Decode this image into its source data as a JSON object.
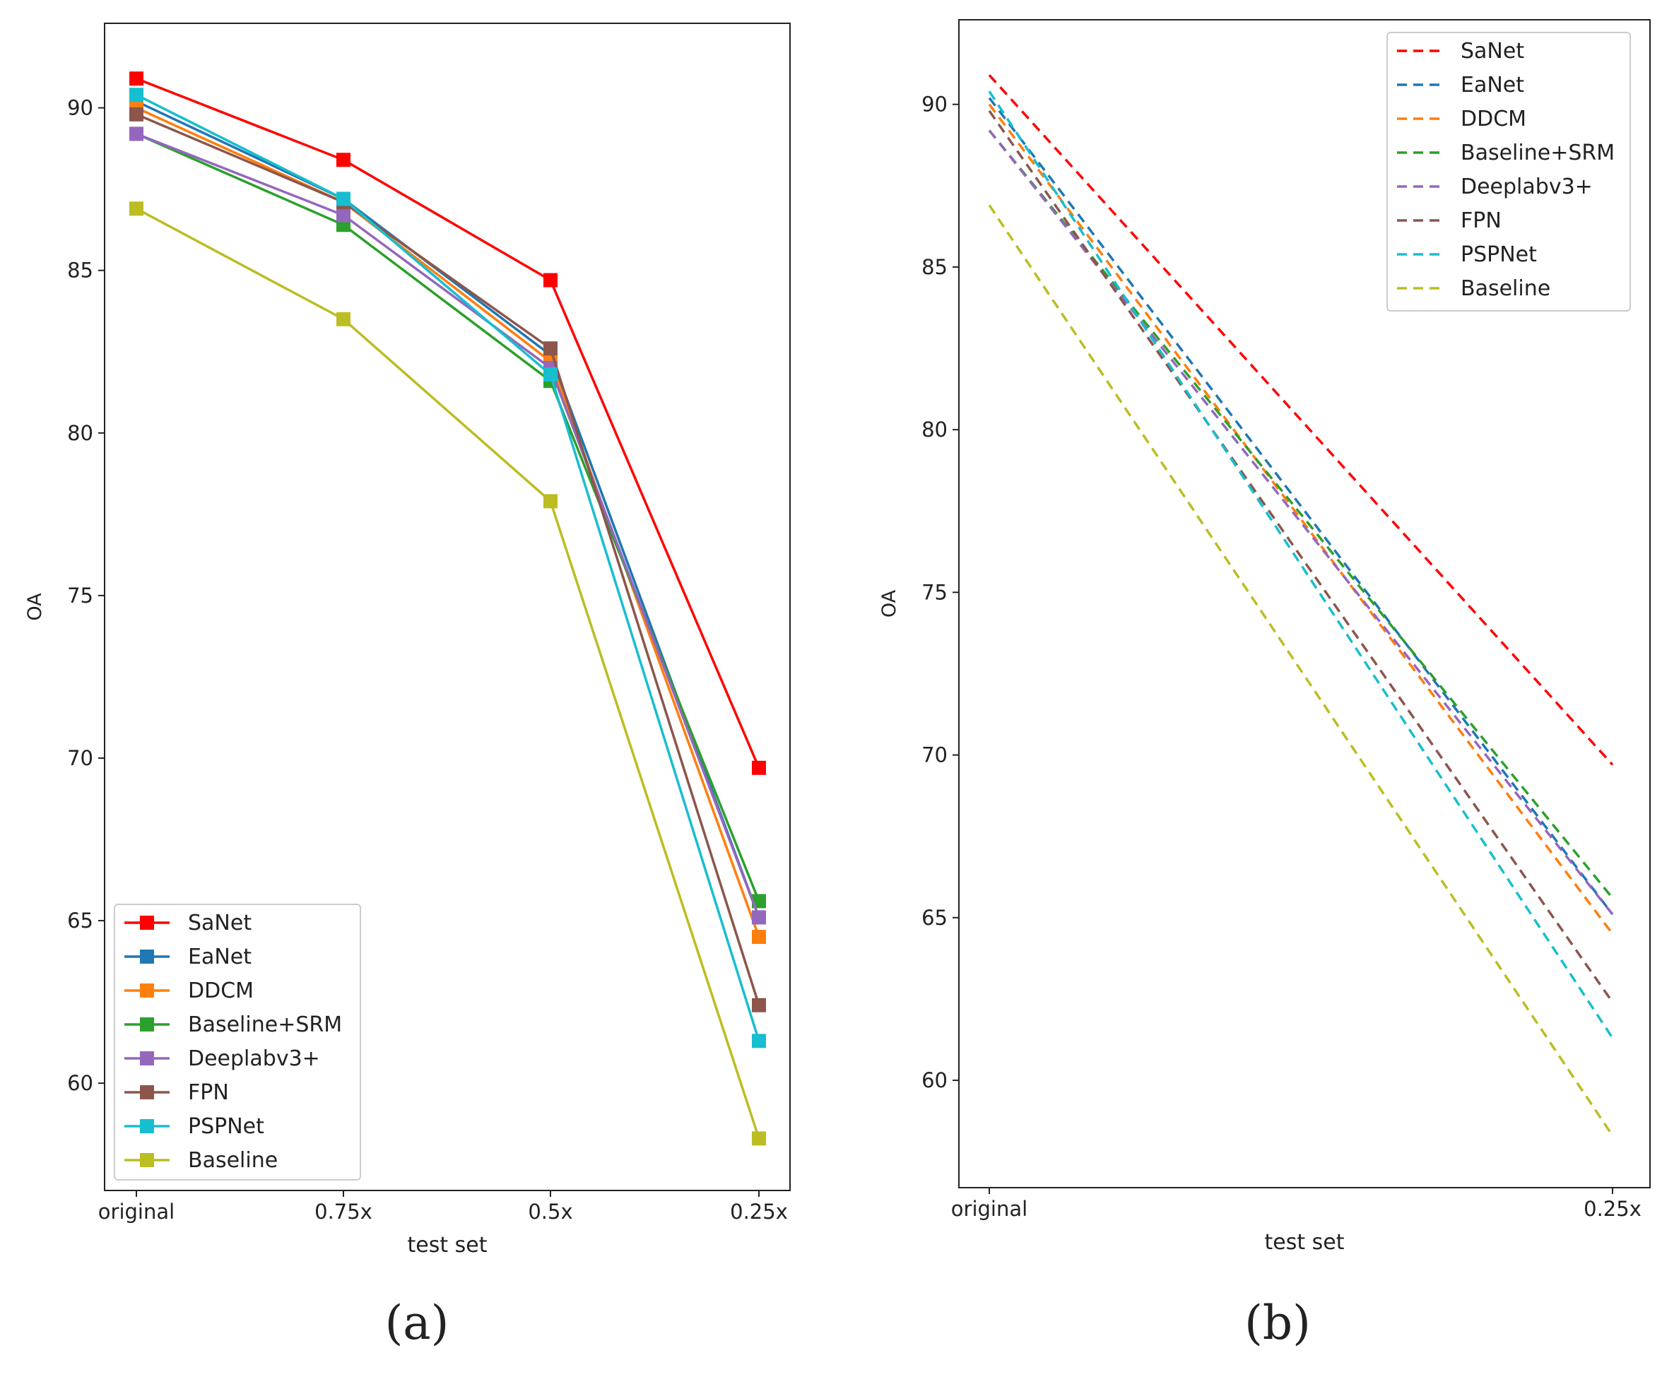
{
  "colors": {
    "SaNet": "#ff0000",
    "EaNet": "#1f77b4",
    "DDCM": "#ff7f0e",
    "Baseline+SRM": "#2ca02c",
    "Deeplabv3+": "#9467bd",
    "FPN": "#8c564b",
    "PSPNet": "#17becf",
    "Baseline": "#bcbd22"
  },
  "panel_labels": [
    "(a)",
    "(b)"
  ],
  "chart_data": [
    {
      "type": "line",
      "panel": "(a)",
      "title": "",
      "xlabel": "test set",
      "ylabel": "OA",
      "categories": [
        "original",
        "0.75x",
        "0.5x",
        "0.25x"
      ],
      "ylim": [
        56.7,
        92.6
      ],
      "yticks": [
        60,
        65,
        70,
        75,
        80,
        85,
        90
      ],
      "marker": "square",
      "line_style": "solid",
      "grid": false,
      "legend_position": "lower-left",
      "series": [
        {
          "name": "SaNet",
          "values": [
            90.9,
            88.4,
            84.7,
            69.7
          ]
        },
        {
          "name": "EaNet",
          "values": [
            90.2,
            87.2,
            82.4,
            65.1
          ]
        },
        {
          "name": "DDCM",
          "values": [
            90.0,
            87.1,
            82.2,
            64.5
          ]
        },
        {
          "name": "Baseline+SRM",
          "values": [
            89.2,
            86.4,
            81.6,
            65.6
          ]
        },
        {
          "name": "Deeplabv3+",
          "values": [
            89.2,
            86.7,
            82.0,
            65.1
          ]
        },
        {
          "name": "FPN",
          "values": [
            89.8,
            87.1,
            82.6,
            62.4
          ]
        },
        {
          "name": "PSPNet",
          "values": [
            90.4,
            87.2,
            81.8,
            61.3
          ]
        },
        {
          "name": "Baseline",
          "values": [
            86.9,
            83.5,
            77.9,
            58.3
          ]
        }
      ]
    },
    {
      "type": "line",
      "panel": "(b)",
      "title": "",
      "xlabel": "test set",
      "ylabel": "OA",
      "categories": [
        "original",
        "0.25x"
      ],
      "ylim": [
        56.7,
        92.6
      ],
      "yticks": [
        60,
        65,
        70,
        75,
        80,
        85,
        90
      ],
      "line_style": "dashed",
      "grid": false,
      "legend_position": "top-right",
      "series": [
        {
          "name": "SaNet",
          "values": [
            90.9,
            69.7
          ]
        },
        {
          "name": "EaNet",
          "values": [
            90.2,
            65.1
          ]
        },
        {
          "name": "DDCM",
          "values": [
            90.0,
            64.5
          ]
        },
        {
          "name": "Baseline+SRM",
          "values": [
            89.2,
            65.6
          ]
        },
        {
          "name": "Deeplabv3+",
          "values": [
            89.2,
            65.1
          ]
        },
        {
          "name": "FPN",
          "values": [
            89.8,
            62.4
          ]
        },
        {
          "name": "PSPNet",
          "values": [
            90.4,
            61.3
          ]
        },
        {
          "name": "Baseline",
          "values": [
            86.9,
            58.3
          ]
        }
      ]
    }
  ]
}
